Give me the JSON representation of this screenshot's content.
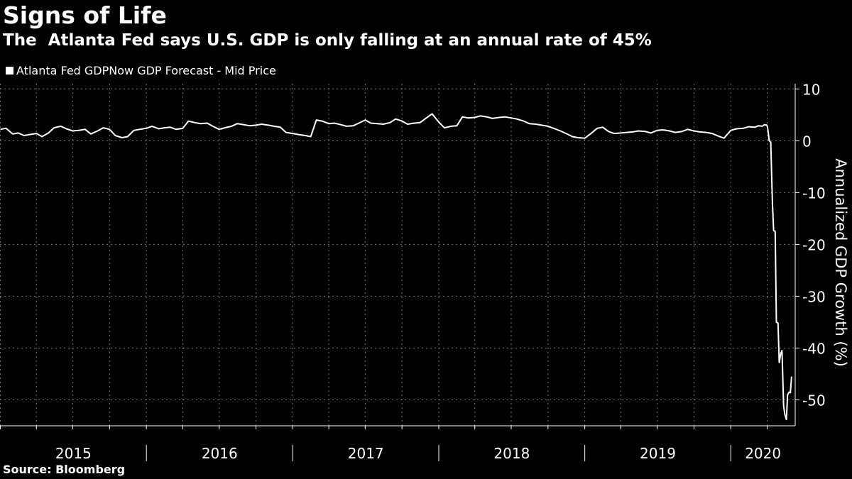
{
  "header": {
    "title": "Signs of Life",
    "subtitle": "The  Atlanta Fed says U.S. GDP is only falling at an annual rate of 45%"
  },
  "legend": {
    "label": "Atlanta Fed GDPNow GDP Forecast - Mid Price"
  },
  "footer": {
    "source": "Source: Bloomberg"
  },
  "chart_data": {
    "type": "line",
    "title": "Signs of Life",
    "subtitle": "The  Atlanta Fed says U.S. GDP is only falling at an annual rate of 45%",
    "ylabel": "Annualized GDP Growth (%)",
    "ylim": [
      -55,
      11
    ],
    "yticks": [
      10,
      0,
      -10,
      -20,
      -30,
      -40,
      -50
    ],
    "year_labels": [
      "2015",
      "2016",
      "2017",
      "2018",
      "2019",
      "2020"
    ],
    "x_range": [
      "2014-12-31",
      "2020-06-10"
    ],
    "grid": true,
    "legend_position": "top-left",
    "line_color": "#ffffff",
    "series": [
      {
        "name": "Atlanta Fed GDPNow GDP Forecast - Mid Price",
        "x": [
          "2015-01-01",
          "2015-01-15",
          "2015-02-01",
          "2015-02-15",
          "2015-03-01",
          "2015-03-15",
          "2015-04-01",
          "2015-04-15",
          "2015-05-01",
          "2015-05-15",
          "2015-06-01",
          "2015-06-15",
          "2015-07-01",
          "2015-07-15",
          "2015-08-01",
          "2015-08-15",
          "2015-09-01",
          "2015-09-15",
          "2015-10-01",
          "2015-10-15",
          "2015-11-01",
          "2015-11-15",
          "2015-12-01",
          "2015-12-15",
          "2016-01-01",
          "2016-01-15",
          "2016-02-01",
          "2016-02-15",
          "2016-03-01",
          "2016-03-15",
          "2016-04-01",
          "2016-04-15",
          "2016-05-01",
          "2016-05-15",
          "2016-06-01",
          "2016-06-15",
          "2016-07-01",
          "2016-07-15",
          "2016-08-01",
          "2016-08-15",
          "2016-09-01",
          "2016-09-15",
          "2016-10-01",
          "2016-10-15",
          "2016-11-01",
          "2016-11-15",
          "2016-12-01",
          "2016-12-15",
          "2017-01-01",
          "2017-01-15",
          "2017-02-01",
          "2017-02-15",
          "2017-03-01",
          "2017-03-15",
          "2017-04-01",
          "2017-04-15",
          "2017-05-01",
          "2017-05-15",
          "2017-06-01",
          "2017-06-15",
          "2017-07-01",
          "2017-07-15",
          "2017-08-01",
          "2017-08-15",
          "2017-09-01",
          "2017-09-15",
          "2017-10-01",
          "2017-10-15",
          "2017-11-01",
          "2017-11-15",
          "2017-12-01",
          "2017-12-15",
          "2018-01-01",
          "2018-01-15",
          "2018-02-01",
          "2018-02-15",
          "2018-03-01",
          "2018-03-15",
          "2018-04-01",
          "2018-04-15",
          "2018-05-01",
          "2018-05-15",
          "2018-06-01",
          "2018-06-15",
          "2018-07-01",
          "2018-07-15",
          "2018-08-01",
          "2018-08-15",
          "2018-09-01",
          "2018-09-15",
          "2018-10-01",
          "2018-10-15",
          "2018-11-01",
          "2018-11-15",
          "2018-12-01",
          "2018-12-15",
          "2019-01-01",
          "2019-01-15",
          "2019-02-01",
          "2019-02-15",
          "2019-03-01",
          "2019-03-15",
          "2019-04-01",
          "2019-04-15",
          "2019-05-01",
          "2019-05-15",
          "2019-06-01",
          "2019-06-15",
          "2019-07-01",
          "2019-07-15",
          "2019-08-01",
          "2019-08-15",
          "2019-09-01",
          "2019-09-15",
          "2019-10-01",
          "2019-10-15",
          "2019-11-01",
          "2019-11-15",
          "2019-12-01",
          "2019-12-15",
          "2020-01-01",
          "2020-01-15",
          "2020-02-01",
          "2020-02-15",
          "2020-03-01",
          "2020-03-10",
          "2020-03-20",
          "2020-03-25",
          "2020-03-31",
          "2020-04-02",
          "2020-04-06",
          "2020-04-10",
          "2020-04-14",
          "2020-04-17",
          "2020-04-21",
          "2020-04-24",
          "2020-04-28",
          "2020-05-01",
          "2020-05-05",
          "2020-05-08",
          "2020-05-12",
          "2020-05-15",
          "2020-05-19",
          "2020-05-22",
          "2020-05-26",
          "2020-05-29",
          "2020-06-01"
        ],
        "y": [
          2.2,
          2.4,
          1.3,
          1.5,
          1.0,
          1.2,
          1.4,
          0.8,
          1.5,
          2.5,
          2.8,
          2.3,
          1.9,
          2.0,
          2.2,
          1.3,
          1.9,
          2.5,
          2.2,
          1.0,
          0.6,
          0.8,
          2.0,
          2.2,
          2.4,
          2.8,
          2.3,
          2.5,
          2.6,
          2.2,
          2.4,
          3.8,
          3.5,
          3.3,
          3.4,
          2.8,
          2.2,
          2.5,
          2.8,
          3.3,
          3.1,
          2.9,
          3.0,
          3.2,
          3.0,
          2.8,
          2.6,
          1.6,
          1.4,
          1.2,
          1.0,
          0.8,
          4.0,
          3.8,
          3.3,
          3.4,
          3.1,
          2.8,
          2.9,
          3.4,
          4.0,
          3.4,
          3.3,
          3.2,
          3.5,
          4.2,
          3.8,
          3.2,
          3.4,
          3.5,
          4.4,
          5.2,
          3.6,
          2.5,
          2.8,
          2.9,
          4.6,
          4.4,
          4.5,
          4.8,
          4.6,
          4.3,
          4.5,
          4.6,
          4.4,
          4.2,
          3.8,
          3.3,
          3.2,
          3.0,
          2.8,
          2.4,
          1.9,
          1.4,
          0.8,
          0.6,
          0.5,
          1.3,
          2.4,
          2.6,
          1.8,
          1.4,
          1.5,
          1.6,
          1.7,
          1.9,
          1.8,
          1.5,
          2.0,
          2.1,
          1.9,
          1.6,
          1.8,
          2.2,
          1.9,
          1.7,
          1.6,
          1.4,
          0.9,
          0.5,
          2.0,
          2.3,
          2.4,
          2.7,
          2.6,
          2.9,
          2.8,
          3.1,
          3.0,
          2.6,
          0.0,
          -0.3,
          -12.0,
          -17.3,
          -17.5,
          -35.0,
          -35.2,
          -42.8,
          -41.0,
          -40.5,
          -51.2,
          -52.8,
          -53.8,
          -49.0,
          -48.5,
          -48.6,
          -45.5
        ]
      }
    ]
  }
}
